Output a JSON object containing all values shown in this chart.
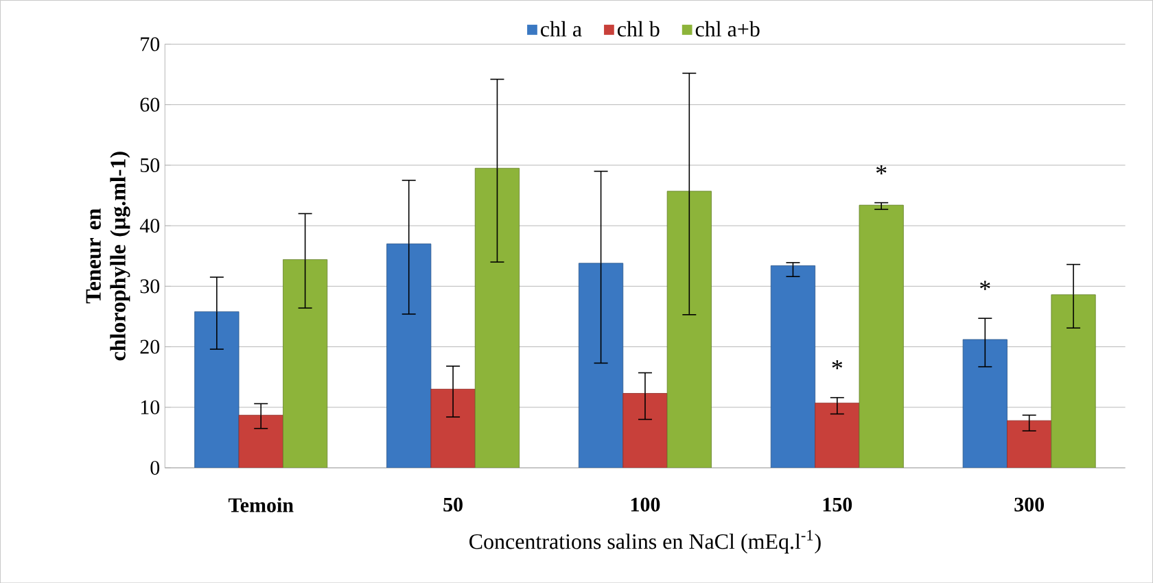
{
  "chart_data": {
    "type": "bar",
    "xlabel": "Concentrations salins en NaCl (mEq.l$^{-1}$)",
    "ylabel": "Teneur en chlorophylle (µg.ml-1)",
    "categories": [
      "Temoin",
      "50",
      "100",
      "150",
      "300"
    ],
    "series": [
      {
        "name": "chl a",
        "color": "#3a78c2",
        "values": [
          25.8,
          37.0,
          33.8,
          33.4,
          21.2
        ],
        "errors": [
          [
            19.6,
            31.5
          ],
          [
            25.4,
            47.5
          ],
          [
            17.3,
            49.0
          ],
          [
            31.6,
            33.9
          ],
          [
            16.7,
            24.7
          ]
        ]
      },
      {
        "name": "chl b",
        "color": "#c8403a",
        "values": [
          8.7,
          13.0,
          12.3,
          10.7,
          7.8
        ],
        "errors": [
          [
            6.5,
            10.6
          ],
          [
            8.4,
            16.8
          ],
          [
            8.0,
            15.7
          ],
          [
            8.9,
            11.6
          ],
          [
            6.1,
            8.7
          ]
        ]
      },
      {
        "name": "chl a+b",
        "color": "#8db43a",
        "values": [
          34.4,
          49.5,
          45.7,
          43.4,
          28.6
        ],
        "errors": [
          [
            26.4,
            42.0
          ],
          [
            34.0,
            64.2
          ],
          [
            25.3,
            65.2
          ],
          [
            42.7,
            43.8
          ],
          [
            23.1,
            33.6
          ]
        ]
      }
    ],
    "annotations": [
      "*",
      "*",
      "*"
    ],
    "ylim": [
      0,
      70
    ],
    "yticks": [
      0,
      10,
      20,
      30,
      40,
      50,
      60,
      70
    ],
    "grid": "y",
    "legend": "top"
  }
}
